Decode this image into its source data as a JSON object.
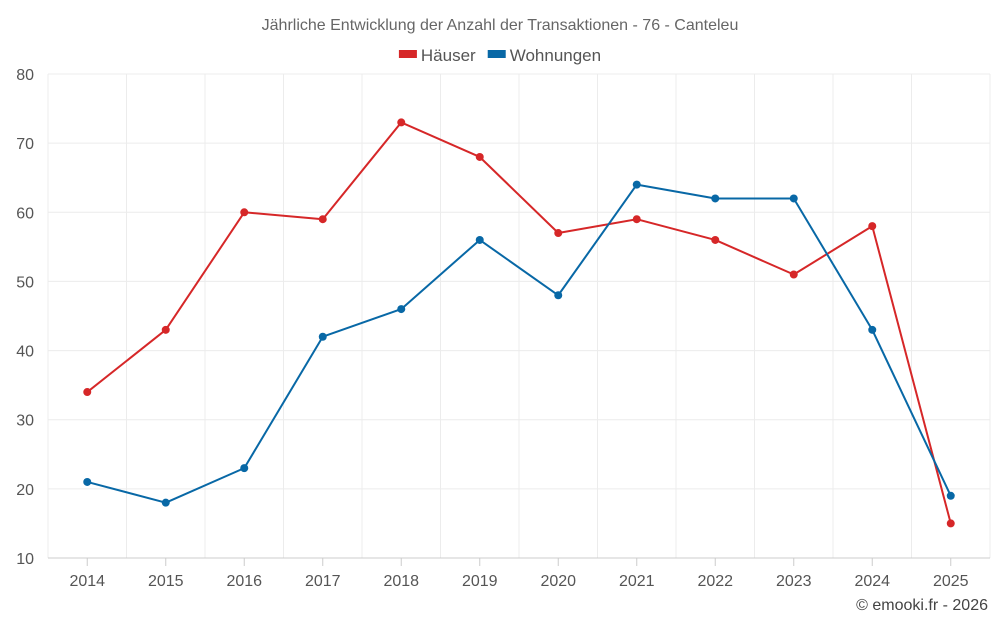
{
  "chart_data": {
    "type": "line",
    "title": "Jährliche Entwicklung der Anzahl der Transaktionen - 76 - Canteleu",
    "categories": [
      "2014",
      "2015",
      "2016",
      "2017",
      "2018",
      "2019",
      "2020",
      "2021",
      "2022",
      "2023",
      "2024",
      "2025"
    ],
    "series": [
      {
        "name": "Häuser",
        "color": "#d62728",
        "values": [
          34,
          43,
          60,
          59,
          73,
          68,
          57,
          59,
          56,
          51,
          58,
          15
        ]
      },
      {
        "name": "Wohnungen",
        "color": "#0868a6",
        "values": [
          21,
          18,
          23,
          42,
          46,
          56,
          48,
          64,
          62,
          62,
          43,
          19
        ]
      }
    ],
    "xlabel": "",
    "ylabel": "",
    "ylim": [
      10,
      80
    ],
    "yticks": [
      10,
      20,
      30,
      40,
      50,
      60,
      70,
      80
    ],
    "grid": true,
    "legend_position": "top-center"
  },
  "credit": "© emooki.fr - 2026"
}
